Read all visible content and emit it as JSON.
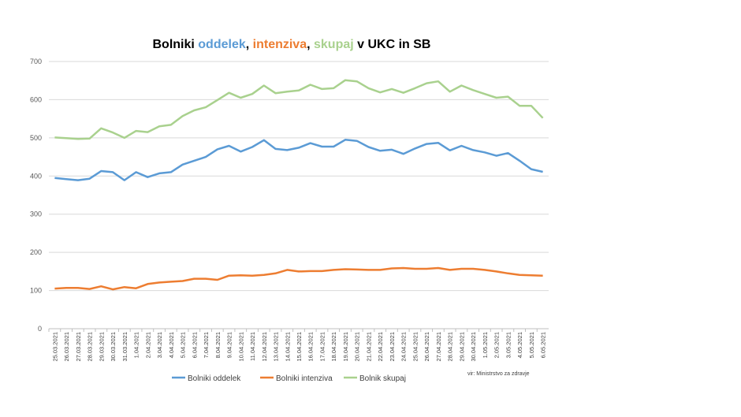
{
  "chart_data": {
    "type": "line",
    "title_parts": [
      "Bolniki ",
      "oddelek",
      ", ",
      "intenziva",
      ", ",
      "skupaj",
      " v UKC in SB"
    ],
    "source": "vir: Ministrstvo za zdravje",
    "categories": [
      "25.03.2021",
      "26.03.2021",
      "27.03.2021",
      "28.03.2021",
      "29.03.2021",
      "30.03.2021",
      "31.03.2021",
      "1.04.2021",
      "2.04.2021",
      "3.04.2021",
      "4.04.2021",
      "5.04.2021",
      "6.04.2021",
      "7.04.2021",
      "8.04.2021",
      "9.04.2021",
      "10.04.2021",
      "11.04.2021",
      "12.04.2021",
      "13.04.2021",
      "14.04.2021",
      "15.04.2021",
      "16.04.2021",
      "17.04.2021",
      "18.04.2021",
      "19.04.2021",
      "20.04.2021",
      "21.04.2021",
      "22.04.2021",
      "23.04.2021",
      "24.04.2021",
      "25.04.2021",
      "26.04.2021",
      "27.04.2021",
      "28.04.2021",
      "29.04.2021",
      "30.04.2021",
      "1.05.2021",
      "2.05.2021",
      "3.05.2021",
      "4.05.2021",
      "5.05.2021",
      "6.05.2021"
    ],
    "series": [
      {
        "name": "Bolniki oddelek",
        "color": "#5b9bd5",
        "values": [
          395,
          392,
          389,
          393,
          413,
          410,
          389,
          410,
          397,
          407,
          410,
          430,
          440,
          450,
          470,
          479,
          464,
          476,
          494,
          471,
          468,
          474,
          486,
          477,
          477,
          495,
          492,
          476,
          466,
          469,
          458,
          472,
          484,
          487,
          467,
          479,
          468,
          462,
          453,
          460,
          440,
          418,
          411
        ]
      },
      {
        "name": "Bolniki intenziva",
        "color": "#ed7d31",
        "values": [
          105,
          107,
          107,
          104,
          111,
          103,
          109,
          106,
          117,
          121,
          123,
          125,
          131,
          131,
          128,
          139,
          140,
          139,
          141,
          145,
          154,
          150,
          151,
          151,
          154,
          156,
          155,
          154,
          154,
          158,
          159,
          157,
          157,
          159,
          154,
          157,
          157,
          154,
          150,
          145,
          141,
          140,
          139
        ]
      },
      {
        "name": "Bolnik skupaj",
        "color": "#a9d18e",
        "values": [
          501,
          499,
          497,
          498,
          525,
          514,
          500,
          518,
          515,
          530,
          534,
          557,
          572,
          580,
          599,
          618,
          605,
          615,
          637,
          617,
          621,
          624,
          639,
          628,
          630,
          651,
          648,
          630,
          619,
          628,
          618,
          630,
          643,
          648,
          621,
          637,
          625,
          615,
          605,
          608,
          584,
          584,
          552
        ]
      }
    ],
    "ylim": [
      0,
      700
    ],
    "yticks": [
      0,
      100,
      200,
      300,
      400,
      500,
      600,
      700
    ],
    "grid": true
  }
}
